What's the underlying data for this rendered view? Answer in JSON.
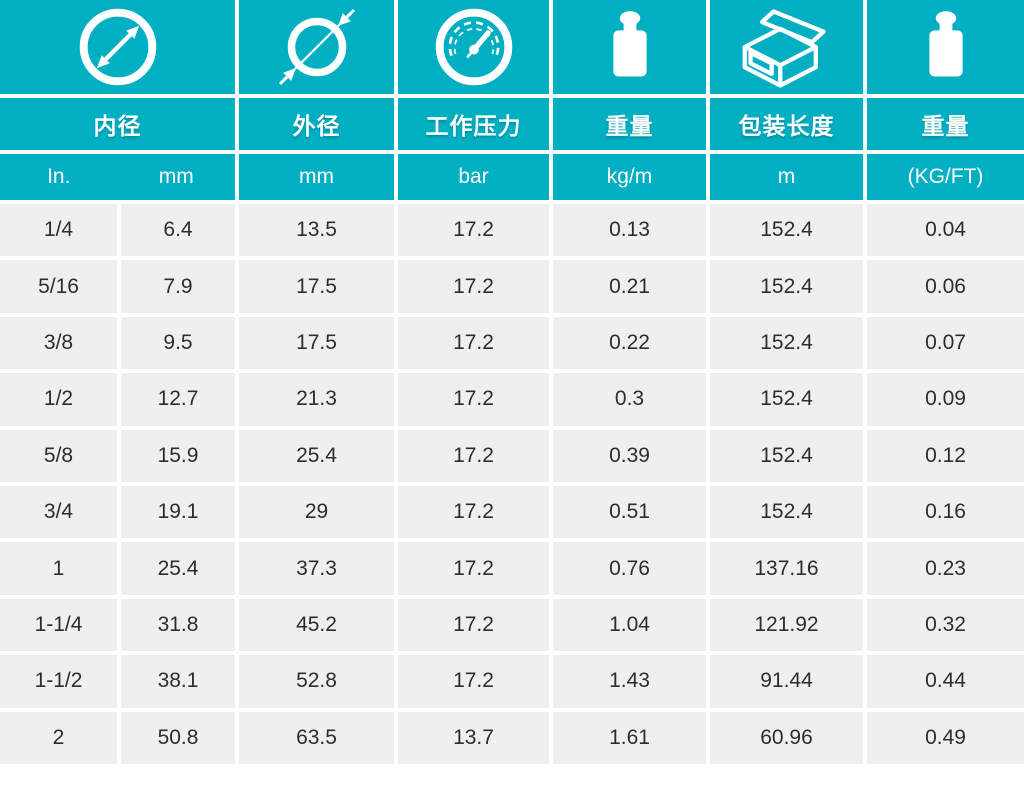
{
  "theme": {
    "teal": "#00afc2",
    "cell_background": "#efefef",
    "data_text": "#2d2d2d",
    "header_text": "#ffffff"
  },
  "table": {
    "columns": [
      {
        "title": "内径",
        "icon": "inner-diameter-icon",
        "units": [
          "In.",
          "mm"
        ]
      },
      {
        "title": "外径",
        "icon": "outer-diameter-icon",
        "unit": "mm"
      },
      {
        "title": "工作压力",
        "icon": "pressure-gauge-icon",
        "unit": "bar"
      },
      {
        "title": "重量",
        "icon": "weight-icon",
        "unit": "kg/m"
      },
      {
        "title": "包装长度",
        "icon": "package-box-icon",
        "unit": "m"
      },
      {
        "title": "重量",
        "icon": "weight-icon",
        "unit": "(KG/FT)"
      }
    ],
    "rows": [
      [
        "1/4",
        "6.4",
        "13.5",
        "17.2",
        "0.13",
        "152.4",
        "0.04"
      ],
      [
        "5/16",
        "7.9",
        "17.5",
        "17.2",
        "0.21",
        "152.4",
        "0.06"
      ],
      [
        "3/8",
        "9.5",
        "17.5",
        "17.2",
        "0.22",
        "152.4",
        "0.07"
      ],
      [
        "1/2",
        "12.7",
        "21.3",
        "17.2",
        "0.3",
        "152.4",
        "0.09"
      ],
      [
        "5/8",
        "15.9",
        "25.4",
        "17.2",
        "0.39",
        "152.4",
        "0.12"
      ],
      [
        "3/4",
        "19.1",
        "29",
        "17.2",
        "0.51",
        "152.4",
        "0.16"
      ],
      [
        "1",
        "25.4",
        "37.3",
        "17.2",
        "0.76",
        "137.16",
        "0.23"
      ],
      [
        "1-1/4",
        "31.8",
        "45.2",
        "17.2",
        "1.04",
        "121.92",
        "0.32"
      ],
      [
        "1-1/2",
        "38.1",
        "52.8",
        "17.2",
        "1.43",
        "91.44",
        "0.44"
      ],
      [
        "2",
        "50.8",
        "63.5",
        "13.7",
        "1.61",
        "60.96",
        "0.49"
      ]
    ]
  },
  "chart_data": {
    "type": "table",
    "title": "",
    "column_headers": [
      "内径 In.",
      "内径 mm",
      "外径 mm",
      "工作压力 bar",
      "重量 kg/m",
      "包装长度 m",
      "重量 (KG/FT)"
    ],
    "rows": [
      [
        "1/4",
        6.4,
        13.5,
        17.2,
        0.13,
        152.4,
        0.04
      ],
      [
        "5/16",
        7.9,
        17.5,
        17.2,
        0.21,
        152.4,
        0.06
      ],
      [
        "3/8",
        9.5,
        17.5,
        17.2,
        0.22,
        152.4,
        0.07
      ],
      [
        "1/2",
        12.7,
        21.3,
        17.2,
        0.3,
        152.4,
        0.09
      ],
      [
        "5/8",
        15.9,
        25.4,
        17.2,
        0.39,
        152.4,
        0.12
      ],
      [
        "3/4",
        19.1,
        29,
        17.2,
        0.51,
        152.4,
        0.16
      ],
      [
        "1",
        25.4,
        37.3,
        17.2,
        0.76,
        137.16,
        0.23
      ],
      [
        "1-1/4",
        31.8,
        45.2,
        17.2,
        1.04,
        121.92,
        0.32
      ],
      [
        "1-1/2",
        38.1,
        52.8,
        17.2,
        1.43,
        91.44,
        0.44
      ],
      [
        "2",
        50.8,
        63.5,
        13.7,
        1.61,
        60.96,
        0.49
      ]
    ]
  }
}
